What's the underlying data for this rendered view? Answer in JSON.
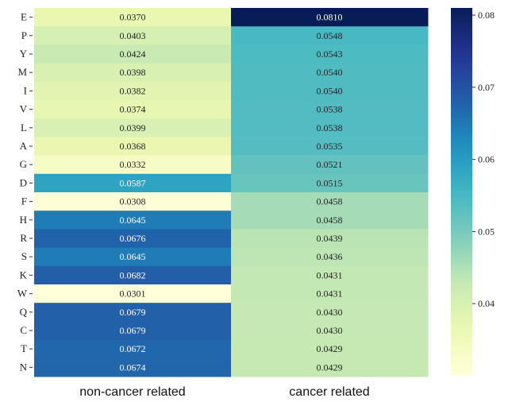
{
  "chart_data": {
    "type": "heatmap",
    "rows": [
      "E",
      "P",
      "Y",
      "M",
      "I",
      "V",
      "L",
      "A",
      "G",
      "D",
      "F",
      "H",
      "R",
      "S",
      "K",
      "W",
      "Q",
      "C",
      "T",
      "N"
    ],
    "columns": [
      "non-cancer related",
      "cancer related"
    ],
    "values": [
      [
        "0.0370",
        "0.0810"
      ],
      [
        "0.0403",
        "0.0548"
      ],
      [
        "0.0424",
        "0.0543"
      ],
      [
        "0.0398",
        "0.0540"
      ],
      [
        "0.0382",
        "0.0540"
      ],
      [
        "0.0374",
        "0.0538"
      ],
      [
        "0.0399",
        "0.0538"
      ],
      [
        "0.0368",
        "0.0535"
      ],
      [
        "0.0332",
        "0.0521"
      ],
      [
        "0.0587",
        "0.0515"
      ],
      [
        "0.0308",
        "0.0458"
      ],
      [
        "0.0645",
        "0.0458"
      ],
      [
        "0.0676",
        "0.0439"
      ],
      [
        "0.0645",
        "0.0436"
      ],
      [
        "0.0682",
        "0.0431"
      ],
      [
        "0.0301",
        "0.0431"
      ],
      [
        "0.0679",
        "0.0430"
      ],
      [
        "0.0679",
        "0.0430"
      ],
      [
        "0.0672",
        "0.0429"
      ],
      [
        "0.0674",
        "0.0429"
      ]
    ],
    "colorbar": {
      "colormap": "YlGnBu",
      "vmin": 0.0301,
      "vmax": 0.081,
      "ticks": [
        "0.04",
        "0.05",
        "0.06",
        "0.07",
        "0.08"
      ]
    }
  }
}
